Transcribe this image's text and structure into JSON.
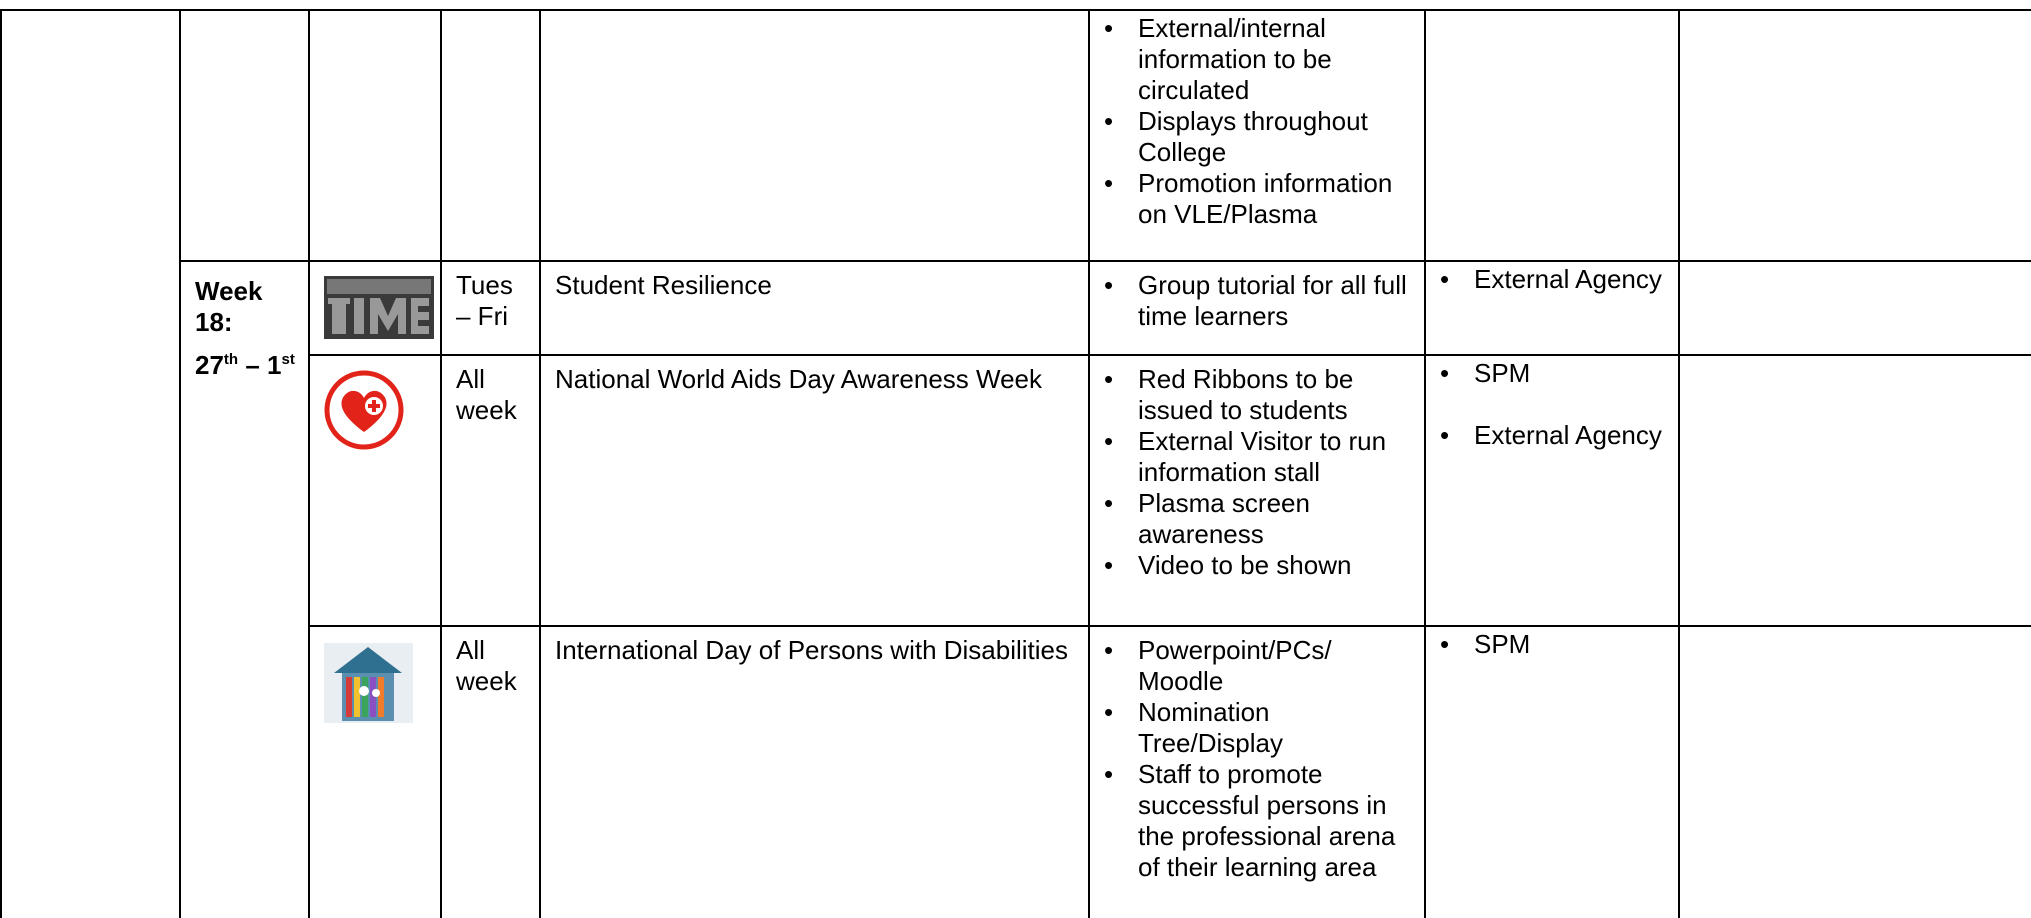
{
  "rows": [
    {
      "actions": [
        "External/internal information to be circulated",
        "Displays throughout College",
        "Promotion information on  VLE/Plasma"
      ]
    },
    {
      "day": "Tues – Fri",
      "event": "Student Resilience",
      "actions": [
        "Group tutorial for all full time learners"
      ],
      "leads": [
        "External Agency"
      ]
    },
    {
      "day": "All week",
      "event": "National World Aids Day Awareness Week",
      "actions": [
        "Red Ribbons to be issued to students",
        "External Visitor to run information stall",
        "Plasma screen awareness",
        "Video to be shown"
      ],
      "leads": [
        "SPM",
        "External Agency"
      ]
    },
    {
      "day": "All week",
      "event": "International Day of Persons with Disabilities",
      "actions": [
        "Powerpoint/PCs/ Moodle",
        "Nomination Tree/Display",
        "Staff to promote successful persons in the professional arena of their learning area"
      ],
      "leads": [
        "SPM"
      ]
    }
  ],
  "week": {
    "label": "Week 18:",
    "start": "27",
    "start_suffix": "th",
    "separator": "–",
    "end": "1",
    "end_suffix": "st"
  }
}
